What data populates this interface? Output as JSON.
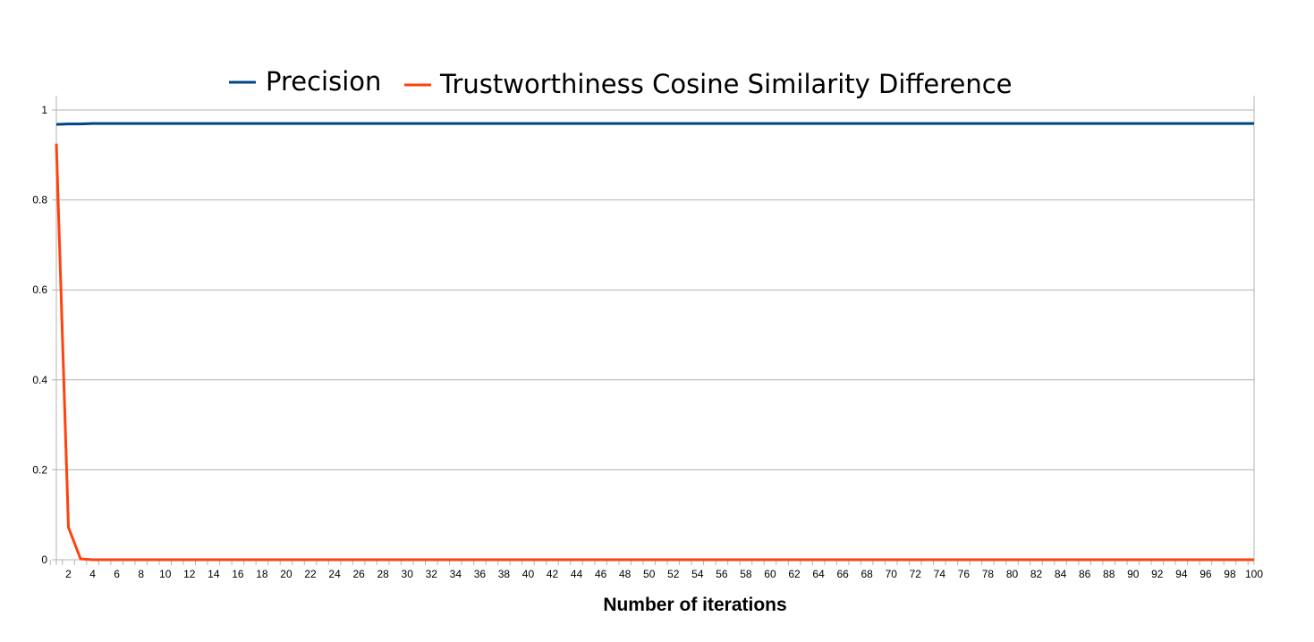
{
  "chart_data": {
    "type": "line",
    "title": "",
    "xlabel": "Number of iterations",
    "ylabel": "",
    "x_start": 1,
    "x_end": 100,
    "x_tick_step": 2,
    "ylim": [
      0,
      1
    ],
    "y_ticks": [
      "0",
      "0.2",
      "0.4",
      "0.6",
      "0.8",
      "1"
    ],
    "grid": "horizontal",
    "legend_position": "top",
    "series": [
      {
        "name": "Precision",
        "color": "#004586",
        "values": [
          0.968,
          0.969,
          0.969,
          0.97,
          0.97
        ],
        "constant_after": 0.97
      },
      {
        "name": "Trustworthiness Cosine Similarity Difference",
        "color": "#ff420e",
        "values": [
          0.925,
          0.072,
          0.002,
          0.0
        ],
        "constant_after": 0.0
      }
    ]
  }
}
